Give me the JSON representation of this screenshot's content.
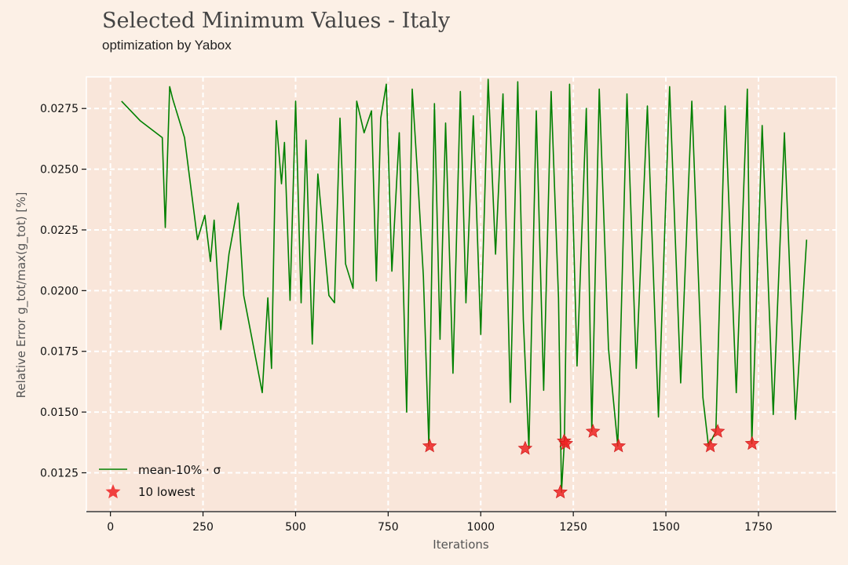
{
  "title": "Selected Minimum Values - Italy",
  "subtitle": "optimization by Yabox",
  "colors": {
    "background": "#fcf0e6",
    "plot_background": "#f9e6da",
    "grid": "#ffffff",
    "line": "#008000",
    "marker": "#ee2222"
  },
  "chart_data": {
    "type": "line",
    "xlabel": "Iterations",
    "ylabel": "Relative Error g_tot/max(g_tot) [%]",
    "xlim": [
      -65,
      1960
    ],
    "ylim": [
      0.0109,
      0.0288
    ],
    "grid": true,
    "legend_position": "bottom-left",
    "x_ticks": [
      0,
      250,
      500,
      750,
      1000,
      1250,
      1500,
      1750
    ],
    "x_tick_labels": [
      "0",
      "250",
      "500",
      "750",
      "1000",
      "1250",
      "1500",
      "1750"
    ],
    "y_ticks": [
      0.0125,
      0.015,
      0.0175,
      0.02,
      0.0225,
      0.025,
      0.0275
    ],
    "y_tick_labels": [
      "0.0125",
      "0.0150",
      "0.0175",
      "0.0200",
      "0.0225",
      "0.0250",
      "0.0275"
    ],
    "series": [
      {
        "name": "mean-10% · σ",
        "kind": "line",
        "x": [
          30,
          80,
          140,
          148,
          160,
          168,
          200,
          235,
          255,
          270,
          280,
          298,
          320,
          345,
          360,
          410,
          425,
          435,
          448,
          462,
          470,
          485,
          500,
          515,
          528,
          545,
          560,
          590,
          605,
          620,
          635,
          655,
          665,
          685,
          705,
          718,
          730,
          745,
          760,
          780,
          800,
          815,
          830,
          845,
          860,
          875,
          890,
          905,
          925,
          945,
          960,
          980,
          1000,
          1020,
          1040,
          1060,
          1080,
          1100,
          1115,
          1130,
          1150,
          1170,
          1190,
          1210,
          1218,
          1226,
          1240,
          1260,
          1285,
          1300,
          1320,
          1345,
          1370,
          1395,
          1420,
          1450,
          1480,
          1510,
          1540,
          1570,
          1600,
          1615,
          1635,
          1660,
          1690,
          1720,
          1732,
          1760,
          1790,
          1820,
          1850,
          1880
        ],
        "y": [
          0.0278,
          0.027,
          0.0263,
          0.0226,
          0.0284,
          0.0279,
          0.0263,
          0.0221,
          0.0231,
          0.0212,
          0.0229,
          0.0184,
          0.0215,
          0.0236,
          0.0198,
          0.0158,
          0.0197,
          0.0168,
          0.027,
          0.0244,
          0.0261,
          0.0196,
          0.0278,
          0.0195,
          0.0262,
          0.0178,
          0.0248,
          0.0198,
          0.0195,
          0.0271,
          0.0211,
          0.0201,
          0.0278,
          0.0265,
          0.0274,
          0.0204,
          0.0271,
          0.0285,
          0.0208,
          0.0265,
          0.015,
          0.0283,
          0.0246,
          0.0206,
          0.0136,
          0.0277,
          0.018,
          0.0269,
          0.0166,
          0.0282,
          0.0195,
          0.0272,
          0.0182,
          0.0287,
          0.0215,
          0.0281,
          0.0154,
          0.0286,
          0.0188,
          0.0135,
          0.0274,
          0.0159,
          0.0282,
          0.0197,
          0.0117,
          0.0138,
          0.0285,
          0.0169,
          0.0275,
          0.0142,
          0.0283,
          0.0176,
          0.0136,
          0.0281,
          0.0168,
          0.0276,
          0.0148,
          0.0284,
          0.0162,
          0.0278,
          0.0156,
          0.0136,
          0.0142,
          0.0276,
          0.0158,
          0.0283,
          0.0137,
          0.0268,
          0.0149,
          0.0265,
          0.0147,
          0.0221
        ]
      },
      {
        "name": "10 lowest",
        "kind": "scatter",
        "x": [
          862,
          1120,
          1215,
          1225,
          1230,
          1303,
          1372,
          1620,
          1640,
          1733
        ],
        "y": [
          0.0136,
          0.0135,
          0.0117,
          0.0138,
          0.0137,
          0.0142,
          0.0136,
          0.0136,
          0.0142,
          0.0137
        ]
      }
    ]
  }
}
